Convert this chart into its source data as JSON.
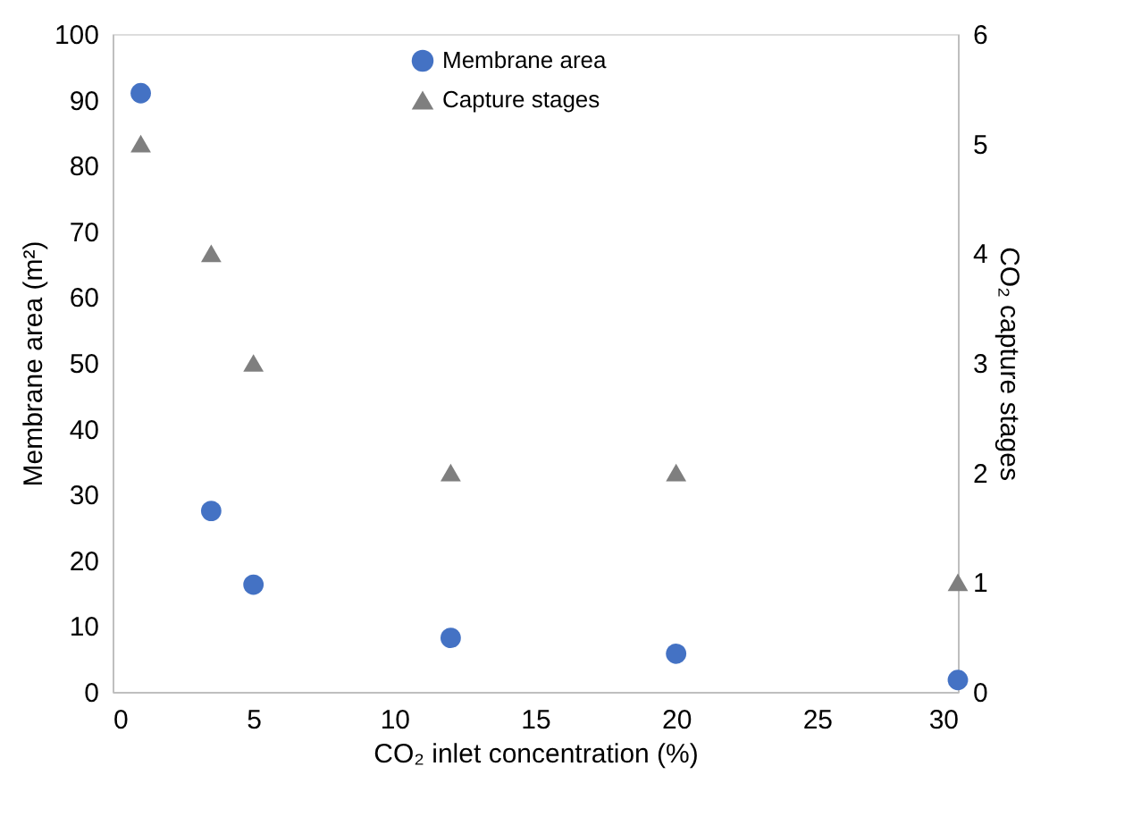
{
  "chart_data": {
    "type": "scatter",
    "xlabel": "CO₂ inlet concentration (%)",
    "ylabel": "Membrane area (m²)",
    "y2label": "CO₂ capture stages",
    "x": [
      1,
      3.5,
      5,
      12,
      20,
      30
    ],
    "series": [
      {
        "name": "Membrane area",
        "color": "#4472c4",
        "marker": "circle",
        "values": [
          91,
          27.5,
          16.3,
          8.2,
          5.8,
          1.8
        ]
      },
      {
        "name": "Capture stages",
        "color": "#7f7f7f",
        "marker": "triangle",
        "axis": "y2",
        "values": [
          5,
          4,
          3,
          2,
          2,
          1
        ]
      }
    ],
    "xlim": [
      0,
      30
    ],
    "xticks": [
      0,
      5,
      10,
      15,
      20,
      25,
      30
    ],
    "ylim": [
      0,
      100
    ],
    "yticks": [
      0,
      10,
      20,
      30,
      40,
      50,
      60,
      70,
      80,
      90,
      100
    ],
    "y2lim": [
      0,
      6
    ],
    "y2ticks": [
      0,
      1,
      2,
      3,
      4,
      5,
      6
    ],
    "grid": false,
    "legend": "top"
  }
}
